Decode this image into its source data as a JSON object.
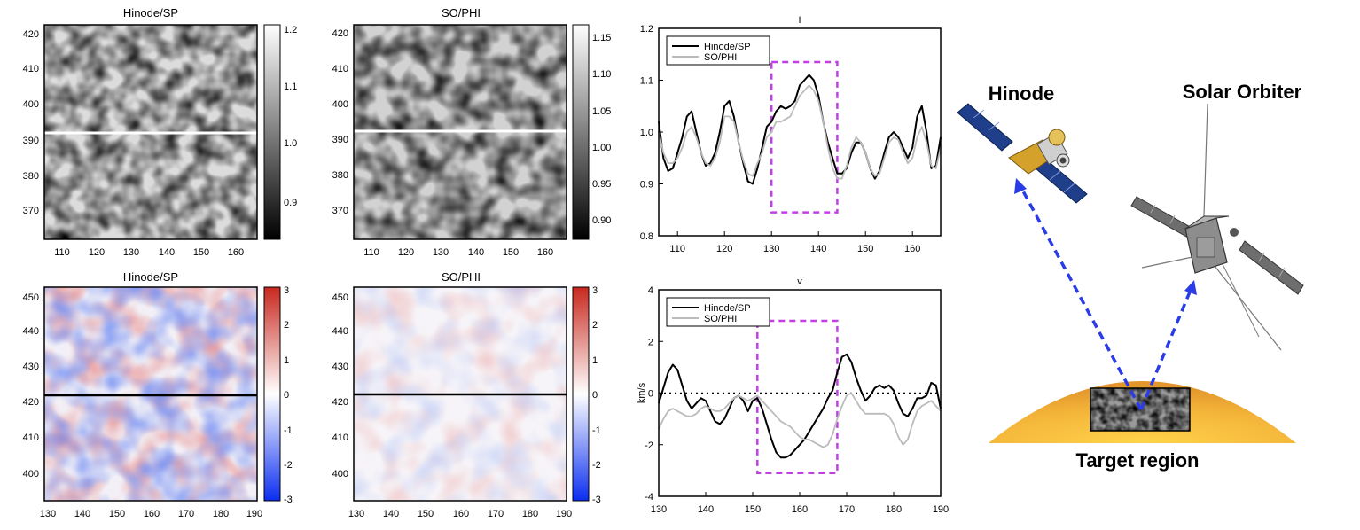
{
  "panels": {
    "hinode_int": {
      "title": "Hinode/SP",
      "cbar_ticks": [
        "1.2",
        "1.1",
        "1.0",
        "0.9"
      ]
    },
    "phi_int": {
      "title": "SO/PHI",
      "cbar_ticks": [
        "1.15",
        "1.10",
        "1.05",
        "1.00",
        "0.95",
        "0.90"
      ]
    },
    "hinode_vel": {
      "title": "Hinode/SP",
      "cbar_ticks": [
        "3",
        "2",
        "1",
        "0",
        "-1",
        "-2",
        "-3"
      ]
    },
    "phi_vel": {
      "title": "SO/PHI",
      "cbar_ticks": [
        "3",
        "2",
        "1",
        "0",
        "-1",
        "-2",
        "-3"
      ]
    },
    "int_map_xticks": [
      "110",
      "120",
      "130",
      "140",
      "150",
      "160"
    ],
    "int_map_yticks": [
      "420",
      "410",
      "400",
      "390",
      "380",
      "370"
    ],
    "vel_map_xticks": [
      "130",
      "140",
      "150",
      "160",
      "170",
      "180",
      "190"
    ],
    "vel_map_yticks": [
      "450",
      "440",
      "430",
      "420",
      "410",
      "400"
    ]
  },
  "diagram": {
    "hinode_label": "Hinode",
    "solar_orbiter_label": "Solar Orbiter",
    "target_label": "Target region"
  },
  "chart_data": [
    {
      "type": "line",
      "title": "I",
      "xlabel": "",
      "ylabel": "",
      "xlim": [
        106,
        166
      ],
      "ylim": [
        0.8,
        1.2
      ],
      "xticks": [
        "110",
        "120",
        "130",
        "140",
        "150",
        "160"
      ],
      "yticks": [
        "1.2",
        "1.1",
        "1.0",
        "0.9",
        "0.8"
      ],
      "legend": [
        "Hinode/SP",
        "SO/PHI"
      ],
      "legend_position": "top-left",
      "highlight_box": [
        130,
        144,
        0.845,
        1.135
      ],
      "series": [
        {
          "name": "Hinode/SP",
          "color": "#000000",
          "x": [
            106,
            107,
            108,
            109,
            110,
            111,
            112,
            113,
            114,
            115,
            116,
            117,
            118,
            119,
            120,
            121,
            122,
            123,
            124,
            125,
            126,
            127,
            128,
            129,
            130,
            131,
            132,
            133,
            134,
            135,
            136,
            137,
            138,
            139,
            140,
            141,
            142,
            143,
            144,
            145,
            146,
            147,
            148,
            149,
            150,
            151,
            152,
            153,
            154,
            155,
            156,
            157,
            158,
            159,
            160,
            161,
            162,
            163,
            164,
            165,
            166
          ],
          "y": [
            1.02,
            0.95,
            0.925,
            0.93,
            0.96,
            0.99,
            1.03,
            1.04,
            1.0,
            0.96,
            0.935,
            0.94,
            0.96,
            1.0,
            1.05,
            1.06,
            1.03,
            0.98,
            0.94,
            0.905,
            0.9,
            0.93,
            0.97,
            1.01,
            1.02,
            1.04,
            1.05,
            1.045,
            1.05,
            1.06,
            1.09,
            1.1,
            1.11,
            1.1,
            1.07,
            1.02,
            0.98,
            0.95,
            0.92,
            0.92,
            0.93,
            0.96,
            0.98,
            0.98,
            0.96,
            0.93,
            0.91,
            0.925,
            0.96,
            0.99,
            1.0,
            0.99,
            0.97,
            0.95,
            0.97,
            1.03,
            1.05,
            1.0,
            0.93,
            0.935,
            0.99
          ]
        },
        {
          "name": "SO/PHI",
          "color": "#bbbbbb",
          "x": [
            106,
            107,
            108,
            109,
            110,
            111,
            112,
            113,
            114,
            115,
            116,
            117,
            118,
            119,
            120,
            121,
            122,
            123,
            124,
            125,
            126,
            127,
            128,
            129,
            130,
            131,
            132,
            133,
            134,
            135,
            136,
            137,
            138,
            139,
            140,
            141,
            142,
            143,
            144,
            145,
            146,
            147,
            148,
            149,
            150,
            151,
            152,
            153,
            154,
            155,
            156,
            157,
            158,
            159,
            160,
            161,
            162,
            163,
            164,
            165,
            166
          ],
          "y": [
            1.0,
            0.96,
            0.94,
            0.94,
            0.95,
            0.97,
            1.0,
            1.01,
            0.99,
            0.96,
            0.94,
            0.935,
            0.95,
            0.98,
            1.03,
            1.03,
            1.02,
            0.98,
            0.945,
            0.92,
            0.915,
            0.94,
            0.96,
            0.99,
            1.0,
            1.02,
            1.02,
            1.025,
            1.03,
            1.05,
            1.07,
            1.08,
            1.09,
            1.08,
            1.06,
            1.02,
            0.97,
            0.93,
            0.91,
            0.91,
            0.935,
            0.97,
            0.99,
            0.98,
            0.96,
            0.93,
            0.915,
            0.92,
            0.95,
            0.98,
            0.99,
            0.985,
            0.96,
            0.94,
            0.95,
            0.99,
            1.01,
            0.98,
            0.935,
            0.93,
            0.97
          ]
        }
      ]
    },
    {
      "type": "line",
      "title": "v",
      "xlabel": "",
      "ylabel": "km/s",
      "xlim": [
        130,
        190
      ],
      "ylim": [
        -4,
        4
      ],
      "xticks": [
        "130",
        "140",
        "150",
        "160",
        "170",
        "180",
        "190"
      ],
      "yticks": [
        "4",
        "2",
        "0",
        "-2",
        "-4"
      ],
      "legend": [
        "Hinode/SP",
        "SO/PHI"
      ],
      "legend_position": "top-left",
      "highlight_box": [
        151,
        168,
        -3.1,
        2.8
      ],
      "series": [
        {
          "name": "Hinode/SP",
          "color": "#000000",
          "x": [
            130,
            131,
            132,
            133,
            134,
            135,
            136,
            137,
            138,
            139,
            140,
            141,
            142,
            143,
            144,
            145,
            146,
            147,
            148,
            149,
            150,
            151,
            152,
            153,
            154,
            155,
            156,
            157,
            158,
            159,
            160,
            161,
            162,
            163,
            164,
            165,
            166,
            167,
            168,
            169,
            170,
            171,
            172,
            173,
            174,
            175,
            176,
            177,
            178,
            179,
            180,
            181,
            182,
            183,
            184,
            185,
            186,
            187,
            188,
            189,
            190
          ],
          "y": [
            -0.4,
            0.2,
            0.8,
            1.1,
            0.9,
            0.3,
            -0.3,
            -0.6,
            -0.4,
            -0.2,
            -0.3,
            -0.7,
            -1.1,
            -1.2,
            -1.0,
            -0.6,
            -0.2,
            -0.1,
            -0.3,
            -0.7,
            -0.3,
            -0.2,
            -0.6,
            -1.2,
            -1.8,
            -2.3,
            -2.5,
            -2.5,
            -2.4,
            -2.2,
            -2.0,
            -1.8,
            -1.5,
            -1.2,
            -0.9,
            -0.6,
            -0.2,
            0.1,
            0.8,
            1.4,
            1.5,
            1.2,
            0.6,
            0.1,
            -0.3,
            -0.1,
            0.2,
            0.3,
            0.2,
            0.3,
            0.1,
            -0.4,
            -0.8,
            -0.9,
            -0.6,
            -0.2,
            -0.2,
            -0.1,
            0.4,
            0.3,
            -0.6
          ]
        },
        {
          "name": "SO/PHI",
          "color": "#bbbbbb",
          "x": [
            130,
            131,
            132,
            133,
            134,
            135,
            136,
            137,
            138,
            139,
            140,
            141,
            142,
            143,
            144,
            145,
            146,
            147,
            148,
            149,
            150,
            151,
            152,
            153,
            154,
            155,
            156,
            157,
            158,
            159,
            160,
            161,
            162,
            163,
            164,
            165,
            166,
            167,
            168,
            169,
            170,
            171,
            172,
            173,
            174,
            175,
            176,
            177,
            178,
            179,
            180,
            181,
            182,
            183,
            184,
            185,
            186,
            187,
            188,
            189,
            190
          ],
          "y": [
            -1.4,
            -1.0,
            -0.7,
            -0.6,
            -0.7,
            -0.8,
            -0.9,
            -0.9,
            -0.8,
            -0.6,
            -0.5,
            -0.6,
            -0.7,
            -0.7,
            -0.6,
            -0.4,
            -0.2,
            -0.1,
            -0.2,
            -0.3,
            -0.2,
            -0.1,
            -0.3,
            -0.5,
            -0.7,
            -0.9,
            -1.1,
            -1.2,
            -1.3,
            -1.5,
            -1.7,
            -1.8,
            -1.8,
            -1.9,
            -2.0,
            -2.1,
            -2.0,
            -1.6,
            -1.0,
            -0.5,
            -0.1,
            0.0,
            -0.3,
            -0.6,
            -0.8,
            -0.8,
            -0.8,
            -0.8,
            -0.8,
            -0.9,
            -1.2,
            -1.7,
            -2.0,
            -1.8,
            -1.2,
            -0.7,
            -0.5,
            -0.4,
            -0.3,
            -0.5,
            -0.7
          ]
        }
      ]
    }
  ]
}
